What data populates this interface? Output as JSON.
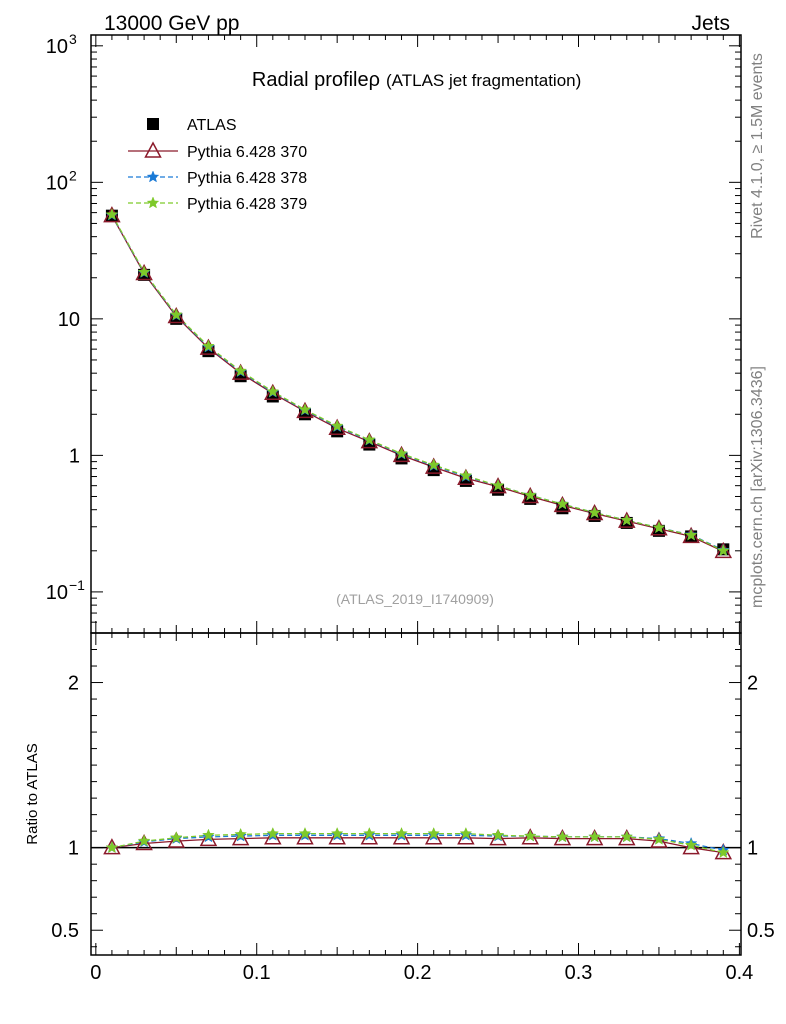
{
  "header": {
    "left": "13000 GeV pp",
    "right": "Jets"
  },
  "side_text": {
    "rivet": "Rivet 4.1.0, ≥ 1.5M events",
    "mcplots": "mcplots.cern.ch [arXiv:1306.3436]"
  },
  "colors": {
    "atlas": "#000000",
    "pythia370": "#8b1a2b",
    "pythia378": "#1a7ad6",
    "pythia379": "#7ec92a"
  },
  "chart_data": [
    {
      "type": "line",
      "title": "Radial profileρ",
      "title_suffix": "(ATLAS jet fragmentation)",
      "analysis_label": "(ATLAS_2019_I1740909)",
      "xlabel": "",
      "ylabel": "",
      "yscale": "log",
      "xlim": [
        -0.003,
        0.401
      ],
      "ylim": [
        0.05,
        1200
      ],
      "yticks": [
        {
          "value": 0.1,
          "label": "10",
          "exp": "−1"
        },
        {
          "value": 1,
          "label": "1",
          "exp": ""
        },
        {
          "value": 10,
          "label": "10",
          "exp": ""
        },
        {
          "value": 100,
          "label": "10",
          "exp": "2"
        },
        {
          "value": 1000,
          "label": "10",
          "exp": "3"
        }
      ],
      "x": [
        0.01,
        0.03,
        0.05,
        0.07,
        0.09,
        0.11,
        0.13,
        0.15,
        0.17,
        0.19,
        0.21,
        0.23,
        0.25,
        0.27,
        0.29,
        0.31,
        0.33,
        0.35,
        0.37,
        0.39
      ],
      "series": [
        {
          "name": "ATLAS",
          "style": "square",
          "values": [
            57,
            21,
            10,
            5.8,
            3.8,
            2.7,
            2.0,
            1.5,
            1.2,
            0.95,
            0.78,
            0.65,
            0.56,
            0.48,
            0.41,
            0.36,
            0.32,
            0.28,
            0.255,
            0.205
          ]
        },
        {
          "name": "Pythia 6.428 370",
          "style": "triangle",
          "values": [
            57,
            21.5,
            10.4,
            6.1,
            4.0,
            2.85,
            2.1,
            1.58,
            1.26,
            1.0,
            0.82,
            0.68,
            0.59,
            0.5,
            0.43,
            0.375,
            0.33,
            0.29,
            0.255,
            0.198
          ]
        },
        {
          "name": "Pythia 6.428 378",
          "style": "star-dashed",
          "values": [
            57.5,
            21.8,
            10.6,
            6.2,
            4.1,
            2.9,
            2.14,
            1.62,
            1.29,
            1.02,
            0.84,
            0.7,
            0.6,
            0.51,
            0.44,
            0.38,
            0.335,
            0.295,
            0.262,
            0.202
          ]
        },
        {
          "name": "Pythia 6.428 379",
          "style": "star-dashed",
          "values": [
            58,
            22,
            10.7,
            6.3,
            4.15,
            2.93,
            2.16,
            1.64,
            1.3,
            1.03,
            0.85,
            0.71,
            0.6,
            0.51,
            0.44,
            0.38,
            0.335,
            0.295,
            0.26,
            0.2
          ]
        }
      ]
    },
    {
      "type": "line",
      "title": "",
      "xlabel": "",
      "ylabel": "Ratio to ATLAS",
      "xlim": [
        -0.003,
        0.401
      ],
      "ylim": [
        0.35,
        2.3
      ],
      "xticks": [
        0,
        0.1,
        0.2,
        0.3,
        0.4
      ],
      "xtick_labels": [
        "0",
        "0.1",
        "0.2",
        "0.3",
        "0.4"
      ],
      "yticks": [
        0.5,
        1,
        2
      ],
      "ytick_labels": [
        "0.5",
        "1",
        "2"
      ],
      "x": [
        0.01,
        0.03,
        0.05,
        0.07,
        0.09,
        0.11,
        0.13,
        0.15,
        0.17,
        0.19,
        0.21,
        0.23,
        0.25,
        0.27,
        0.29,
        0.31,
        0.33,
        0.35,
        0.37,
        0.39
      ],
      "series": [
        {
          "name": "Pythia 6.428 370",
          "style": "triangle",
          "values": [
            1.0,
            1.025,
            1.04,
            1.05,
            1.055,
            1.06,
            1.06,
            1.06,
            1.06,
            1.06,
            1.06,
            1.06,
            1.055,
            1.06,
            1.055,
            1.055,
            1.055,
            1.04,
            1.0,
            0.97
          ]
        },
        {
          "name": "Pythia 6.428 378",
          "style": "star-dashed",
          "values": [
            1.0,
            1.035,
            1.055,
            1.065,
            1.07,
            1.075,
            1.075,
            1.075,
            1.075,
            1.075,
            1.075,
            1.075,
            1.07,
            1.07,
            1.065,
            1.065,
            1.065,
            1.055,
            1.025,
            0.985
          ]
        },
        {
          "name": "Pythia 6.428 379",
          "style": "star-dashed",
          "values": [
            1.0,
            1.04,
            1.06,
            1.075,
            1.08,
            1.085,
            1.085,
            1.085,
            1.085,
            1.085,
            1.085,
            1.085,
            1.075,
            1.07,
            1.065,
            1.065,
            1.065,
            1.05,
            1.015,
            0.97
          ]
        }
      ]
    }
  ]
}
